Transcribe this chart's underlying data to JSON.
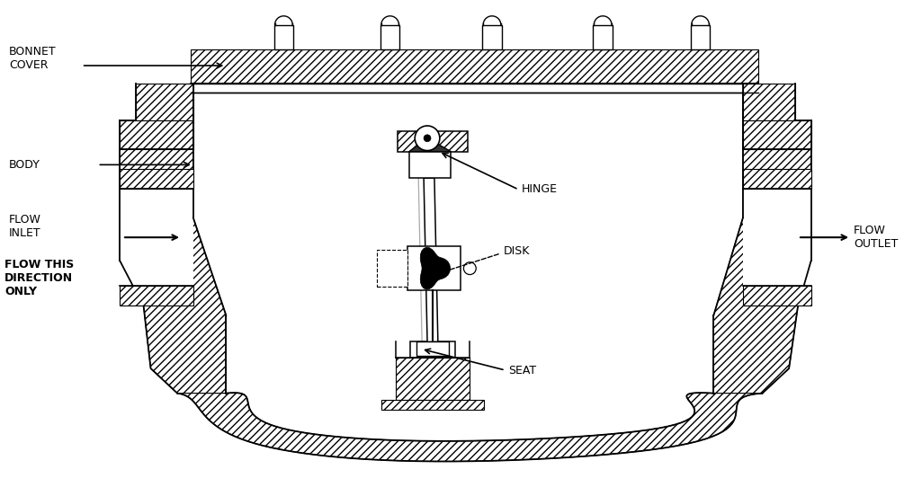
{
  "bg_color": "#ffffff",
  "line_color": "#000000",
  "labels": {
    "bonnet_cover": "BONNET\nCOVER",
    "body": "BODY",
    "flow_inlet": "FLOW\nINLET",
    "flow_direction": "FLOW THIS\nDIRECTION\nONLY",
    "hinge": "HINGE",
    "disk": "DISK",
    "seat": "SEAT",
    "flow_outlet": "FLOW\nOUTLET"
  }
}
